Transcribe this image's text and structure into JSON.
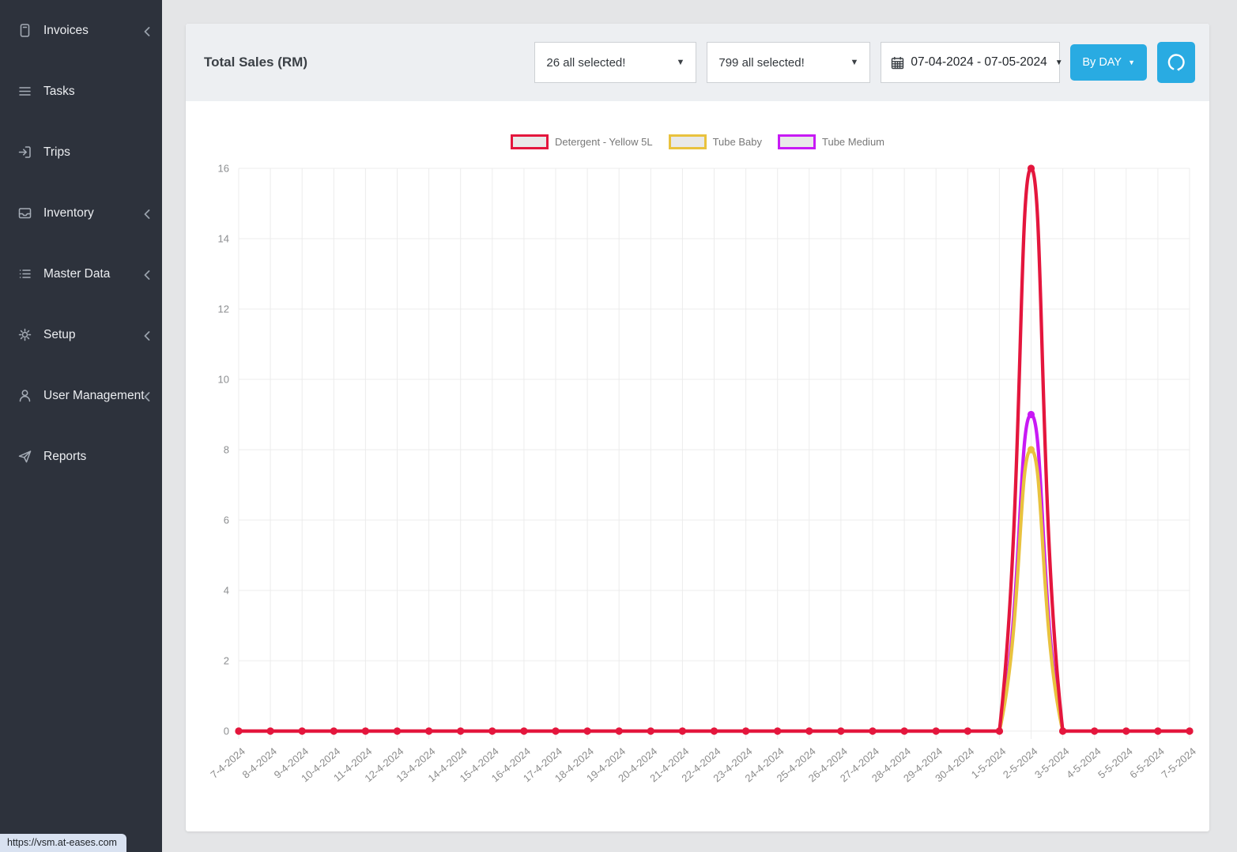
{
  "sidebar": {
    "items": [
      {
        "label": "Invoices",
        "icon": "invoice-icon",
        "expandable": true
      },
      {
        "label": "Tasks",
        "icon": "tasks-icon",
        "expandable": false
      },
      {
        "label": "Trips",
        "icon": "trips-icon",
        "expandable": false
      },
      {
        "label": "Inventory",
        "icon": "inventory-icon",
        "expandable": true
      },
      {
        "label": "Master Data",
        "icon": "master-data-icon",
        "expandable": true
      },
      {
        "label": "Setup",
        "icon": "setup-icon",
        "expandable": true
      },
      {
        "label": "User Management",
        "icon": "user-management-icon",
        "expandable": true
      },
      {
        "label": "Reports",
        "icon": "reports-icon",
        "expandable": false
      }
    ]
  },
  "header": {
    "title": "Total Sales (RM)",
    "filter1_value": "26 all selected!",
    "filter2_value": "799 all selected!",
    "date_range": "07-04-2024 - 07-05-2024",
    "interval_label": "By DAY"
  },
  "status_bar": {
    "link_preview": "https://vsm.at-eases.com"
  },
  "colors": {
    "accent_blue": "#29abe2",
    "sidebar_bg": "#2d323c",
    "card_header_bg": "#edeff2",
    "grid": "#ececec",
    "axis_text": "#8c8e90"
  },
  "chart_data": {
    "type": "line",
    "title": "Total Sales (RM)",
    "legend_position": "top",
    "grid": true,
    "ylim": [
      0,
      16
    ],
    "ytick_step": 2,
    "smoothing": 0.4,
    "x": [
      "7-4-2024",
      "8-4-2024",
      "9-4-2024",
      "10-4-2024",
      "11-4-2024",
      "12-4-2024",
      "13-4-2024",
      "14-4-2024",
      "15-4-2024",
      "16-4-2024",
      "17-4-2024",
      "18-4-2024",
      "19-4-2024",
      "20-4-2024",
      "21-4-2024",
      "22-4-2024",
      "23-4-2024",
      "24-4-2024",
      "25-4-2024",
      "26-4-2024",
      "27-4-2024",
      "28-4-2024",
      "29-4-2024",
      "30-4-2024",
      "1-5-2024",
      "2-5-2024",
      "3-5-2024",
      "4-5-2024",
      "5-5-2024",
      "6-5-2024",
      "7-5-2024"
    ],
    "series": [
      {
        "name": "Detergent - Yellow 5L",
        "color": "#e4163d",
        "values": [
          0,
          0,
          0,
          0,
          0,
          0,
          0,
          0,
          0,
          0,
          0,
          0,
          0,
          0,
          0,
          0,
          0,
          0,
          0,
          0,
          0,
          0,
          0,
          0,
          0,
          16,
          0,
          0,
          0,
          0,
          0
        ]
      },
      {
        "name": "Tube Baby",
        "color": "#e9c23e",
        "values": [
          0,
          0,
          0,
          0,
          0,
          0,
          0,
          0,
          0,
          0,
          0,
          0,
          0,
          0,
          0,
          0,
          0,
          0,
          0,
          0,
          0,
          0,
          0,
          0,
          0,
          8,
          0,
          0,
          0,
          0,
          0
        ]
      },
      {
        "name": "Tube Medium",
        "color": "#c81af5",
        "values": [
          0,
          0,
          0,
          0,
          0,
          0,
          0,
          0,
          0,
          0,
          0,
          0,
          0,
          0,
          0,
          0,
          0,
          0,
          0,
          0,
          0,
          0,
          0,
          0,
          0,
          9,
          0,
          0,
          0,
          0,
          0
        ]
      }
    ]
  }
}
